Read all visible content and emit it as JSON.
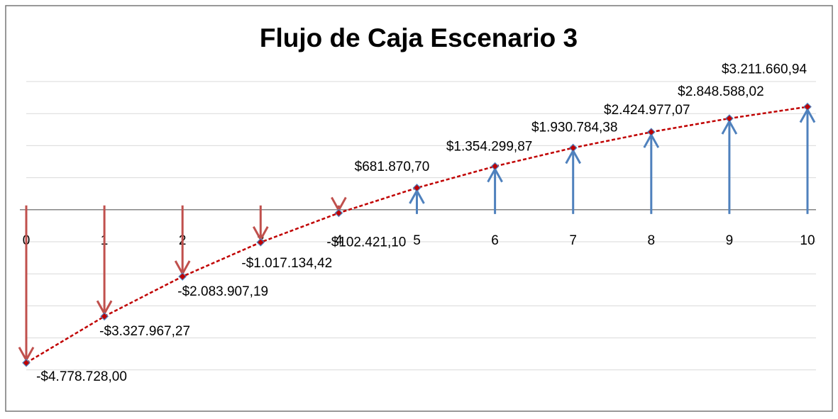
{
  "chart_data": {
    "type": "line",
    "title": "Flujo de Caja Escenario 3",
    "categories": [
      "0",
      "1",
      "2",
      "3",
      "4",
      "5",
      "6",
      "7",
      "8",
      "9",
      "10"
    ],
    "series": [
      {
        "color": "#c00000",
        "values": [
          -4778728.0,
          -3327967.27,
          -2083907.19,
          -1017134.42,
          -102421.1,
          681870.7,
          1354299.87,
          1930784.38,
          2424977.07,
          2848588.02,
          3211660.94
        ],
        "value_labels": [
          "-$4.778.728,00",
          "-$3.327.967,27",
          "-$2.083.907,19",
          "-$1.017.134,42",
          "-$102.421,10",
          "$681.870,70",
          "$1.354.299,87",
          "$1.930.784,38",
          "$2.424.977,07",
          "$2.848.588,02",
          "$3.211.660,94"
        ]
      }
    ],
    "arrow_colors": {
      "negative": "#c0504d",
      "positive": "#4f81bd"
    },
    "ylim": [
      -6000000,
      4000000
    ],
    "yticks": [
      -6000000,
      -5000000,
      -4000000,
      -3000000,
      -2000000,
      -1000000,
      0,
      1000000,
      2000000,
      3000000,
      4000000
    ],
    "grid": true
  }
}
